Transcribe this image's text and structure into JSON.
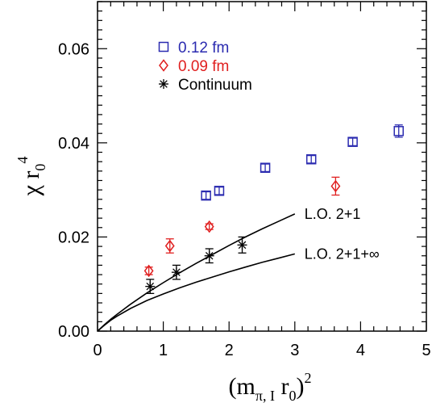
{
  "chart_data": {
    "type": "scatter",
    "xlabel": "(m_{π, I} r_0)^2",
    "ylabel": "χ r_0^4",
    "xlim": [
      0,
      5
    ],
    "ylim": [
      0,
      0.07
    ],
    "x_ticks": [
      0,
      1,
      2,
      3,
      4,
      5
    ],
    "x_tick_labels": [
      "0",
      "1",
      "2",
      "3",
      "4",
      "5"
    ],
    "y_ticks": [
      0.0,
      0.02,
      0.04,
      0.06
    ],
    "y_tick_labels": [
      "0.00",
      "0.02",
      "0.04",
      "0.06"
    ],
    "grid": false,
    "legend_position": "top-left",
    "series": [
      {
        "name": "0.12 fm",
        "marker": "square",
        "color": "#2b2bb0",
        "points": [
          {
            "x": 1.65,
            "y": 0.0288,
            "err": 0.0008
          },
          {
            "x": 1.85,
            "y": 0.0298,
            "err": 0.0008
          },
          {
            "x": 2.55,
            "y": 0.0347,
            "err": 0.0008
          },
          {
            "x": 3.25,
            "y": 0.0365,
            "err": 0.0008
          },
          {
            "x": 3.88,
            "y": 0.0402,
            "err": 0.0008
          },
          {
            "x": 4.58,
            "y": 0.0425,
            "err": 0.0013
          }
        ]
      },
      {
        "name": "0.09 fm",
        "marker": "diamond",
        "color": "#e02020",
        "points": [
          {
            "x": 0.78,
            "y": 0.0128,
            "err": 0.0008
          },
          {
            "x": 1.1,
            "y": 0.0181,
            "err": 0.0015
          },
          {
            "x": 1.7,
            "y": 0.0222,
            "err": 0.0006
          },
          {
            "x": 3.62,
            "y": 0.0308,
            "err": 0.0019
          }
        ]
      },
      {
        "name": "Continuum",
        "marker": "asterisk",
        "color": "#000000",
        "points": [
          {
            "x": 0.8,
            "y": 0.0095,
            "err": 0.0015
          },
          {
            "x": 1.2,
            "y": 0.0125,
            "err": 0.0015
          },
          {
            "x": 1.7,
            "y": 0.016,
            "err": 0.0015
          },
          {
            "x": 2.2,
            "y": 0.0183,
            "err": 0.0017
          }
        ]
      }
    ],
    "curves": [
      {
        "label": "L.O.  2+1",
        "x": [
          0,
          0.1,
          0.2,
          0.3,
          0.5,
          0.75,
          1.0,
          1.25,
          1.5,
          1.75,
          2.0,
          2.25,
          2.5,
          2.75,
          3.0
        ],
        "y": [
          0,
          0.0013,
          0.0025,
          0.0036,
          0.0057,
          0.0081,
          0.0103,
          0.0124,
          0.0144,
          0.0163,
          0.0182,
          0.02,
          0.0217,
          0.0233,
          0.0249
        ]
      },
      {
        "label": "L.O.  2+1+∞",
        "x": [
          0,
          0.1,
          0.2,
          0.3,
          0.5,
          0.75,
          1.0,
          1.25,
          1.5,
          1.75,
          2.0,
          2.25,
          2.5,
          2.75,
          3.0
        ],
        "y": [
          0,
          0.0012,
          0.0023,
          0.0032,
          0.0048,
          0.0065,
          0.0079,
          0.0092,
          0.0104,
          0.0115,
          0.0126,
          0.0136,
          0.0146,
          0.0155,
          0.0164
        ]
      }
    ]
  }
}
